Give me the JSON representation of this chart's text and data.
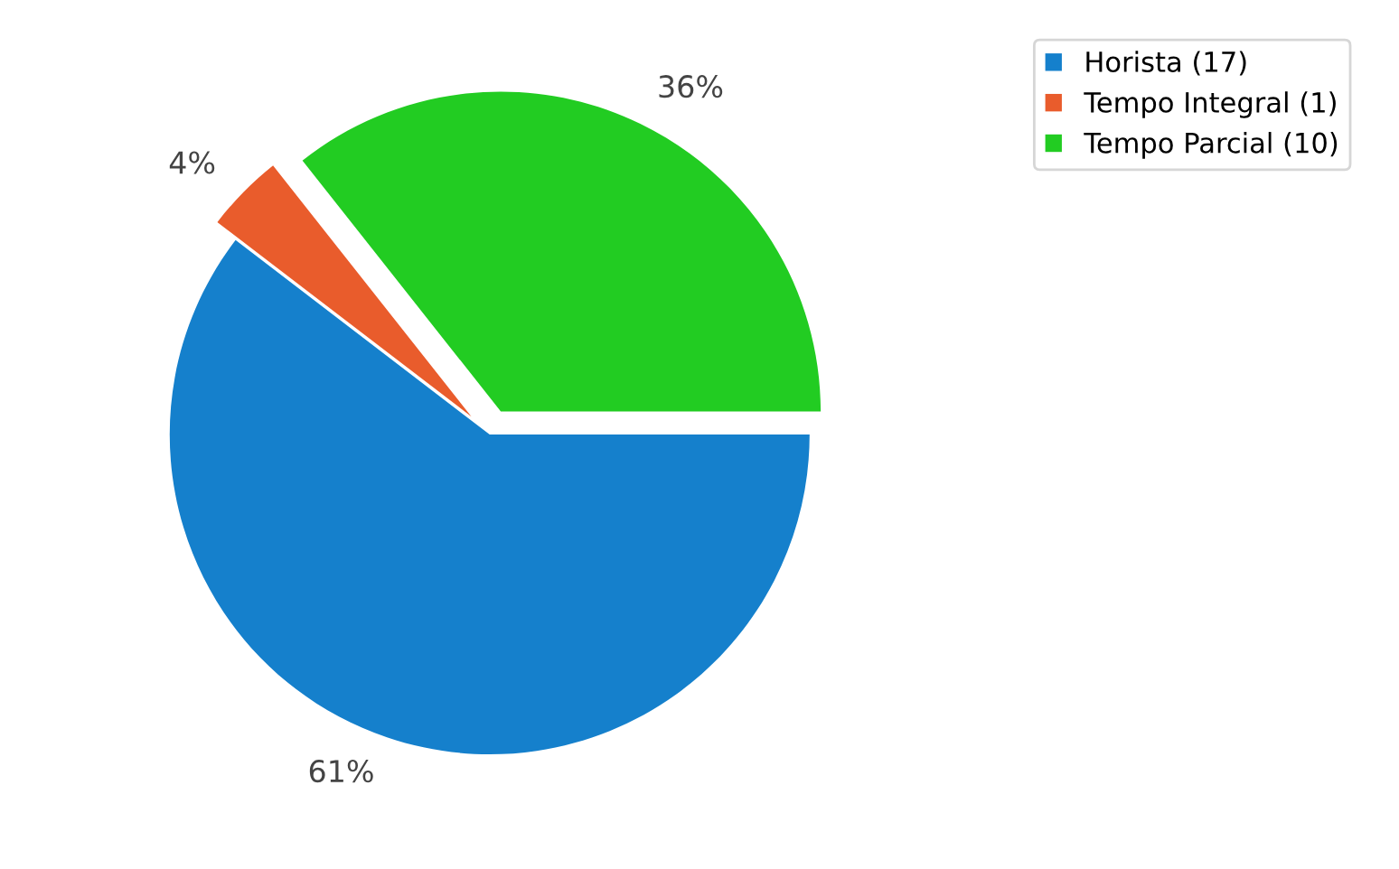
{
  "chart_data": {
    "type": "pie",
    "categories": [
      "Horista (17)",
      "Tempo Integral (1)",
      "Tempo Parcial (10)"
    ],
    "values": [
      61,
      4,
      36
    ],
    "value_labels": [
      "61%",
      "4%",
      "36%"
    ],
    "colors": [
      "#1580cc",
      "#e95c2c",
      "#22cc22"
    ],
    "legend": "top right"
  }
}
